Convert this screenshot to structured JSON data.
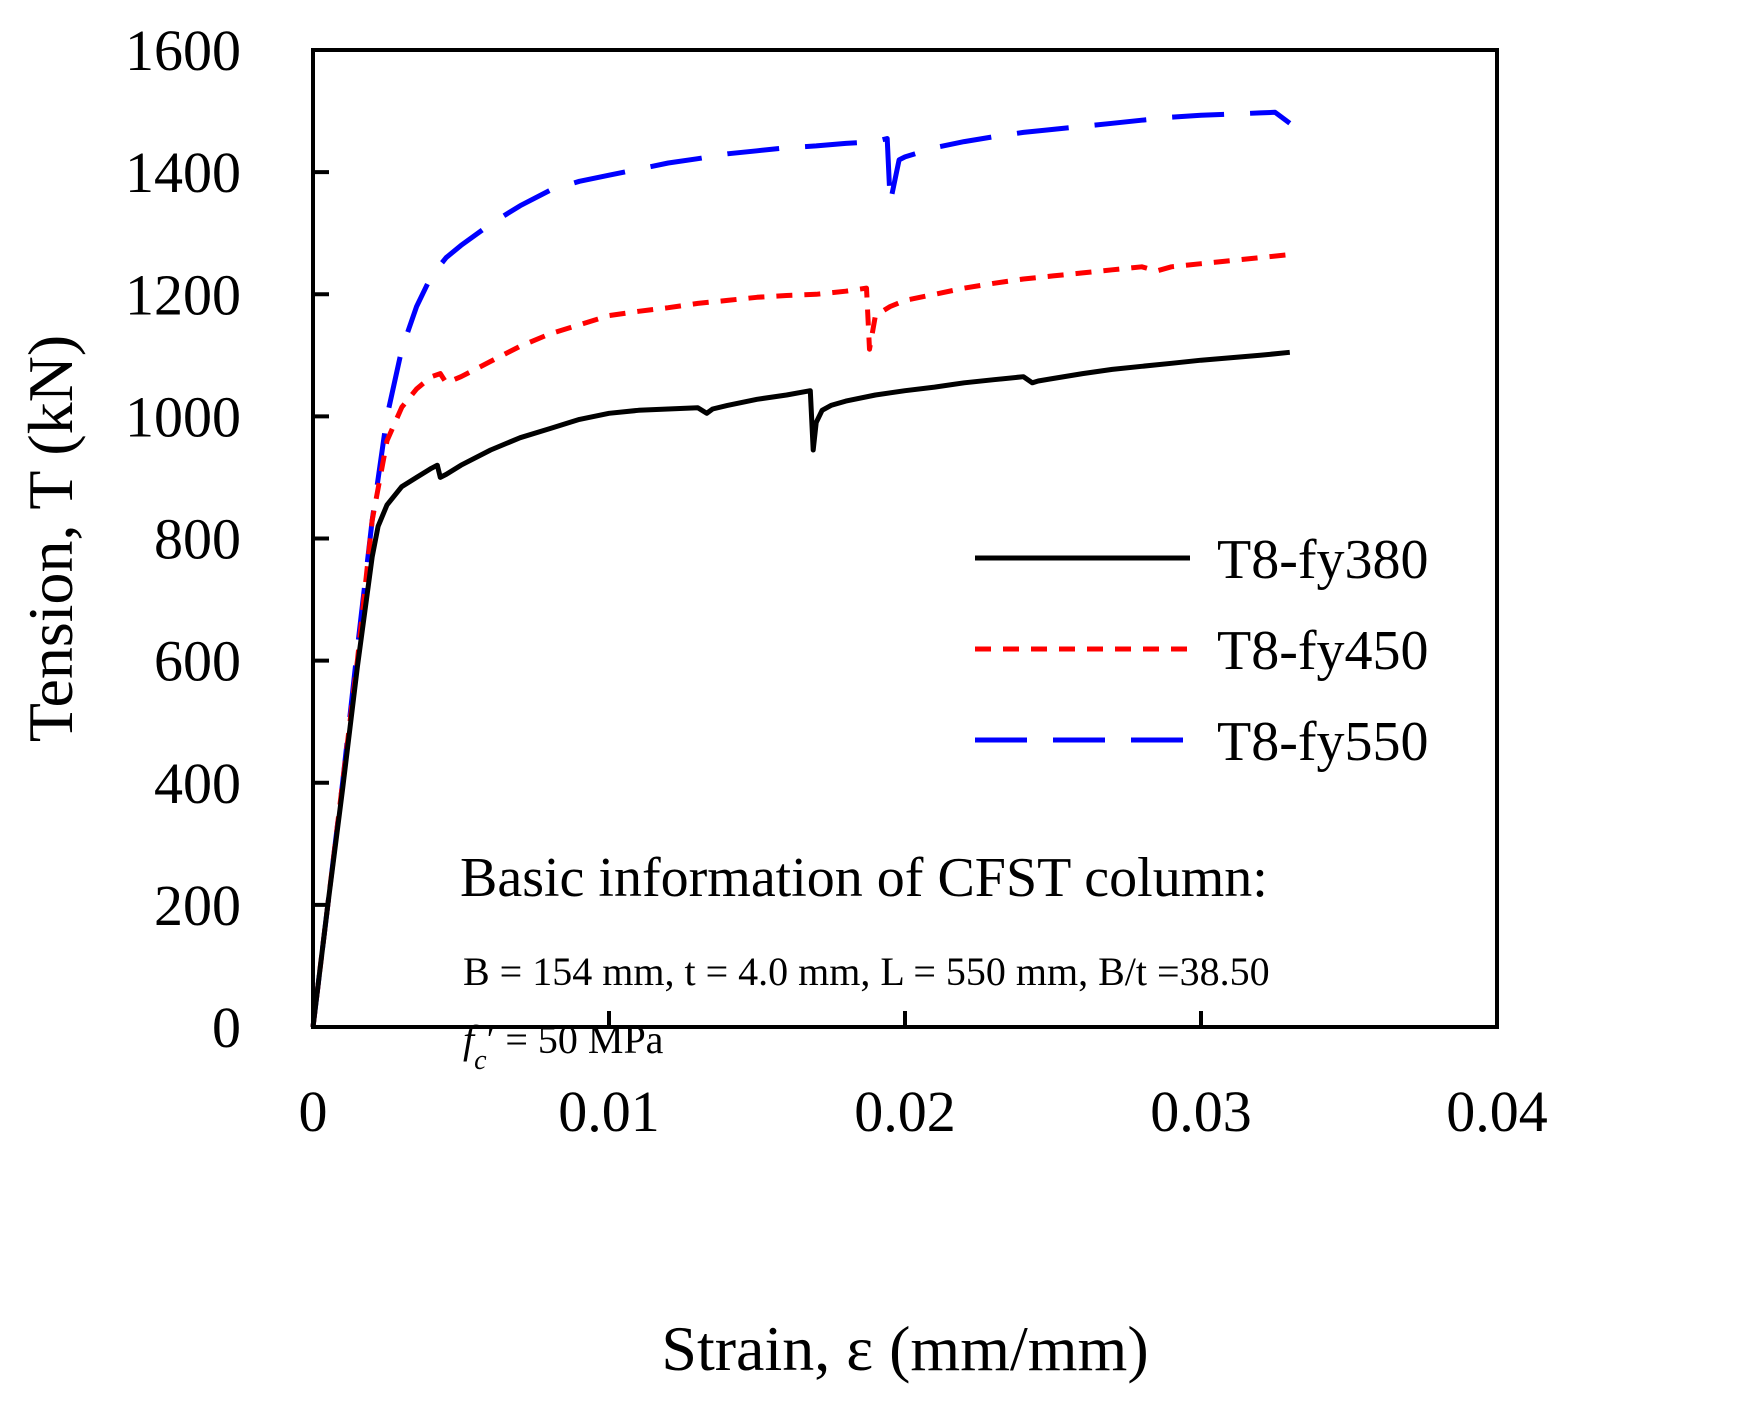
{
  "chart_data": {
    "type": "line",
    "title": "",
    "xlabel": "Strain, ε (mm/mm)",
    "ylabel": "Tension, T (kN)",
    "xlim": [
      0,
      0.04
    ],
    "ylim": [
      0,
      1600
    ],
    "xticks": [
      0,
      0.01,
      0.02,
      0.03,
      0.04
    ],
    "xtick_labels": [
      "0",
      "0.01",
      "0.02",
      "0.03",
      "0.04"
    ],
    "yticks": [
      0,
      200,
      400,
      600,
      800,
      1000,
      1200,
      1400,
      1600
    ],
    "ytick_labels": [
      "0",
      "200",
      "400",
      "600",
      "800",
      "1000",
      "1200",
      "1400",
      "1600"
    ],
    "grid": false,
    "legend_position": "right-middle",
    "series": [
      {
        "name": "T8-fy380",
        "color": "#000000",
        "style": "solid",
        "x": [
          0,
          0.0005,
          0.001,
          0.0015,
          0.002,
          0.0022,
          0.0025,
          0.003,
          0.0035,
          0.004,
          0.0042,
          0.0043,
          0.0045,
          0.005,
          0.006,
          0.007,
          0.008,
          0.009,
          0.01,
          0.011,
          0.012,
          0.013,
          0.0133,
          0.0135,
          0.014,
          0.015,
          0.016,
          0.0168,
          0.0169,
          0.017,
          0.0172,
          0.0175,
          0.018,
          0.019,
          0.02,
          0.021,
          0.022,
          0.023,
          0.024,
          0.0243,
          0.0245,
          0.025,
          0.026,
          0.027,
          0.028,
          0.029,
          0.03,
          0.031,
          0.032,
          0.033
        ],
        "y": [
          0,
          200,
          390,
          590,
          770,
          820,
          855,
          885,
          900,
          915,
          920,
          900,
          905,
          920,
          945,
          965,
          980,
          995,
          1005,
          1010,
          1012,
          1014,
          1005,
          1012,
          1018,
          1028,
          1035,
          1042,
          945,
          990,
          1010,
          1018,
          1025,
          1035,
          1042,
          1048,
          1055,
          1060,
          1065,
          1055,
          1058,
          1062,
          1070,
          1077,
          1082,
          1087,
          1092,
          1096,
          1100,
          1105
        ]
      },
      {
        "name": "T8-fy450",
        "color": "#ff0000",
        "style": "short-dash",
        "x": [
          0,
          0.0005,
          0.001,
          0.0015,
          0.002,
          0.0025,
          0.003,
          0.0035,
          0.004,
          0.0043,
          0.0045,
          0.005,
          0.006,
          0.007,
          0.008,
          0.009,
          0.01,
          0.011,
          0.012,
          0.013,
          0.014,
          0.015,
          0.016,
          0.017,
          0.018,
          0.0187,
          0.0188,
          0.019,
          0.0195,
          0.02,
          0.021,
          0.022,
          0.023,
          0.024,
          0.025,
          0.026,
          0.027,
          0.028,
          0.0285,
          0.029,
          0.03,
          0.031,
          0.032,
          0.033
        ],
        "y": [
          0,
          200,
          400,
          600,
          830,
          960,
          1015,
          1045,
          1065,
          1070,
          1055,
          1065,
          1090,
          1115,
          1135,
          1150,
          1165,
          1172,
          1178,
          1185,
          1190,
          1195,
          1198,
          1200,
          1205,
          1210,
          1110,
          1165,
          1180,
          1190,
          1200,
          1210,
          1218,
          1225,
          1230,
          1235,
          1240,
          1245,
          1238,
          1245,
          1250,
          1255,
          1260,
          1265
        ]
      },
      {
        "name": "T8-fy550",
        "color": "#0000ff",
        "style": "long-dash",
        "x": [
          0,
          0.0005,
          0.001,
          0.0015,
          0.002,
          0.0025,
          0.003,
          0.0035,
          0.004,
          0.0045,
          0.005,
          0.006,
          0.007,
          0.008,
          0.009,
          0.01,
          0.011,
          0.012,
          0.013,
          0.014,
          0.015,
          0.016,
          0.017,
          0.018,
          0.019,
          0.0194,
          0.0195,
          0.0198,
          0.02,
          0.021,
          0.022,
          0.023,
          0.024,
          0.025,
          0.026,
          0.027,
          0.028,
          0.029,
          0.03,
          0.031,
          0.032,
          0.0325,
          0.033
        ],
        "y": [
          0,
          200,
          400,
          620,
          830,
          1000,
          1110,
          1180,
          1230,
          1260,
          1280,
          1315,
          1345,
          1370,
          1385,
          1395,
          1405,
          1415,
          1422,
          1430,
          1435,
          1440,
          1443,
          1447,
          1450,
          1455,
          1350,
          1420,
          1425,
          1440,
          1450,
          1458,
          1465,
          1470,
          1475,
          1480,
          1485,
          1490,
          1493,
          1495,
          1497,
          1498,
          1480
        ]
      }
    ],
    "annotation": {
      "title": "Basic information of CFST column:",
      "line1": "B = 154 mm, t = 4.0 mm, L = 550 mm, B/t =38.50",
      "fc_symbol": "f",
      "fc_sub": "c",
      "fc_prime": "′",
      "fc_value": " = 50 MPa"
    }
  }
}
